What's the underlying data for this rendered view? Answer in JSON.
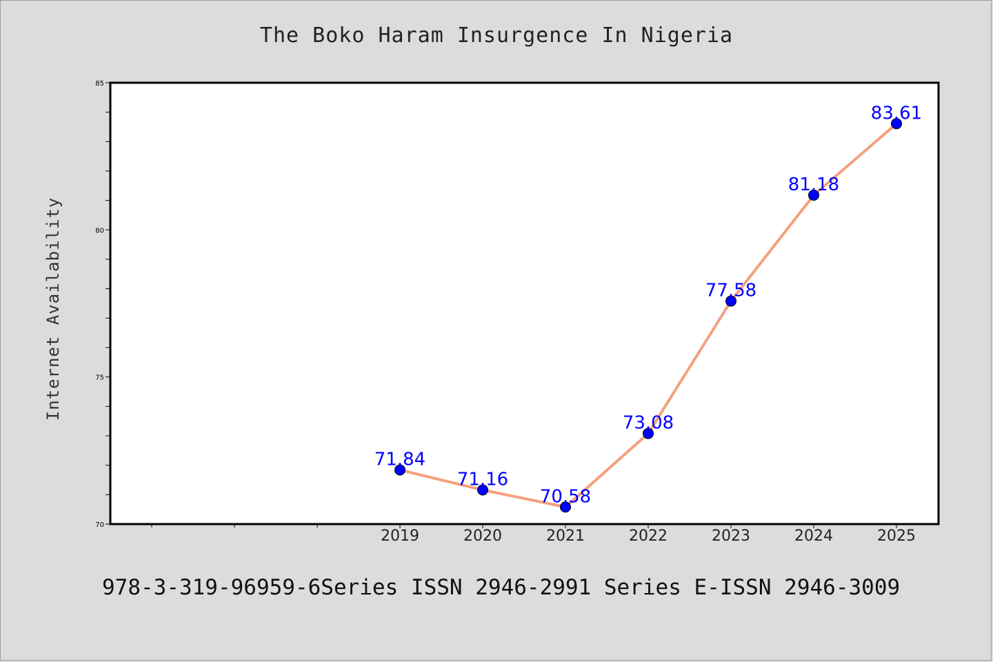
{
  "chart_data": {
    "type": "line",
    "title": "The Boko Haram Insurgence In Nigeria",
    "xlabel": "",
    "ylabel": "Internet Availability",
    "x": [
      "2019",
      "2020",
      "2021",
      "2022",
      "2023",
      "2024",
      "2025"
    ],
    "series": [
      {
        "values": [
          71.84,
          71.16,
          70.58,
          73.08,
          77.58,
          81.18,
          83.61
        ],
        "labels": [
          "71.84",
          "71.16",
          "70.58",
          "73.08",
          "77.58",
          "81.18",
          "83.61"
        ]
      }
    ],
    "ylim": [
      70,
      85
    ],
    "yticks": [
      "70",
      "75",
      "80",
      "85"
    ],
    "grid": false,
    "legend": "none",
    "colors": {
      "line": "#f4a07c",
      "marker": "#0000ff",
      "data_label": "#0000ff",
      "background": "#dcdcdc",
      "plot_background": "#ffffff"
    }
  },
  "footer": {
    "text": "978-3-319-96959-6Series ISSN 2946-2991 Series E-ISSN 2946-3009"
  }
}
